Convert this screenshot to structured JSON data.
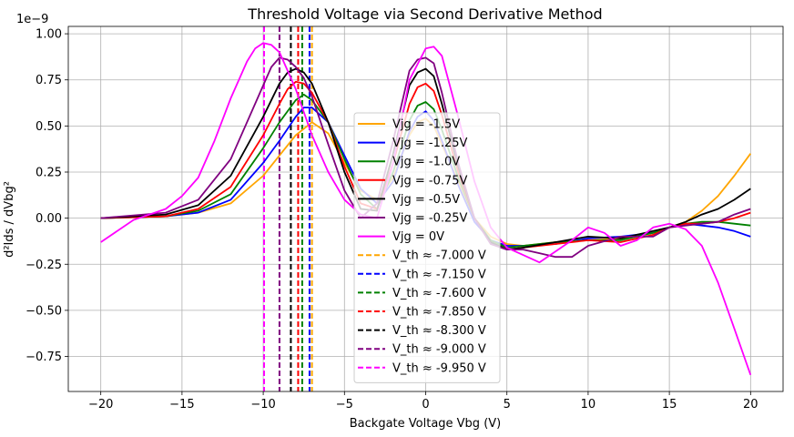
{
  "chart_data": {
    "type": "line",
    "title": "Threshold Voltage via Second Derivative Method",
    "xlabel": "Backgate Voltage Vbg (V)",
    "ylabel": "d²Ids / dVbg²",
    "y_offset_label": "1e−9",
    "xlim": [
      -22,
      22
    ],
    "ylim": [
      -0.94,
      1.04
    ],
    "y_scale_note": "values in units of 1e-9",
    "grid": true,
    "legend_position": "center",
    "x_ticks": [
      -20,
      -15,
      -10,
      -5,
      0,
      5,
      10,
      15,
      20
    ],
    "x_tick_labels": [
      "−20",
      "−15",
      "−10",
      "−5",
      "0",
      "5",
      "10",
      "15",
      "20"
    ],
    "y_ticks": [
      -0.75,
      -0.5,
      -0.25,
      0.0,
      0.25,
      0.5,
      0.75,
      1.0
    ],
    "y_tick_labels": [
      "−0.75",
      "−0.50",
      "−0.25",
      "0.00",
      "0.25",
      "0.50",
      "0.75",
      "1.00"
    ],
    "series": [
      {
        "name": "Vjg = -1.5V",
        "color": "#ffa500",
        "vth": -7.0,
        "x": [
          -20,
          -16,
          -14,
          -12,
          -10,
          -9,
          -8,
          -7,
          -6,
          -5,
          -4,
          -3,
          -2,
          -1,
          -0.5,
          0,
          0.5,
          1,
          2,
          3,
          4,
          5,
          6,
          8,
          10,
          12,
          14,
          15,
          16,
          17,
          18,
          19,
          20
        ],
        "y": [
          0.0,
          0.01,
          0.03,
          0.08,
          0.23,
          0.34,
          0.45,
          0.52,
          0.46,
          0.3,
          0.15,
          0.1,
          0.22,
          0.45,
          0.52,
          0.54,
          0.5,
          0.4,
          0.2,
          0.0,
          -0.1,
          -0.14,
          -0.15,
          -0.13,
          -0.12,
          -0.11,
          -0.08,
          -0.05,
          -0.02,
          0.04,
          0.12,
          0.23,
          0.35
        ]
      },
      {
        "name": "Vjg = -1.25V",
        "color": "#0000ff",
        "vth": -7.15,
        "x": [
          -20,
          -16,
          -14,
          -12,
          -10,
          -9,
          -8,
          -7.5,
          -7,
          -6,
          -5,
          -4,
          -3,
          -2,
          -1,
          -0.5,
          0,
          0.5,
          1,
          2,
          3,
          4,
          5,
          6,
          8,
          10,
          12,
          14,
          15,
          16,
          17,
          18,
          19,
          20
        ],
        "y": [
          0.0,
          0.01,
          0.03,
          0.1,
          0.3,
          0.42,
          0.55,
          0.6,
          0.6,
          0.52,
          0.34,
          0.16,
          0.08,
          0.2,
          0.47,
          0.55,
          0.58,
          0.53,
          0.42,
          0.18,
          -0.02,
          -0.12,
          -0.15,
          -0.15,
          -0.14,
          -0.11,
          -0.1,
          -0.08,
          -0.05,
          -0.03,
          -0.04,
          -0.05,
          -0.07,
          -0.1
        ]
      },
      {
        "name": "Vjg = -1.0V",
        "color": "#008000",
        "vth": -7.6,
        "x": [
          -20,
          -16,
          -14,
          -12,
          -10,
          -9,
          -8,
          -7.5,
          -7,
          -6,
          -5,
          -4,
          -3,
          -2,
          -1,
          -0.5,
          0,
          0.5,
          1,
          2,
          3,
          4,
          5,
          6,
          8,
          10,
          12,
          14,
          15,
          16,
          17,
          18,
          19,
          20
        ],
        "y": [
          0.0,
          0.01,
          0.04,
          0.13,
          0.38,
          0.52,
          0.64,
          0.67,
          0.64,
          0.52,
          0.32,
          0.13,
          0.05,
          0.25,
          0.53,
          0.61,
          0.63,
          0.59,
          0.48,
          0.22,
          0.0,
          -0.12,
          -0.16,
          -0.15,
          -0.13,
          -0.12,
          -0.12,
          -0.08,
          -0.05,
          -0.03,
          -0.02,
          -0.02,
          -0.03,
          -0.04
        ]
      },
      {
        "name": "Vjg = -0.75V",
        "color": "#ff0000",
        "vth": -7.85,
        "x": [
          -20,
          -16,
          -14,
          -12,
          -10,
          -9,
          -8.5,
          -8,
          -7.5,
          -7,
          -6,
          -5,
          -4,
          -3,
          -2,
          -1,
          -0.5,
          0,
          0.5,
          1,
          2,
          3,
          4,
          5,
          6,
          8,
          10,
          12,
          14,
          15,
          16,
          17,
          18,
          19,
          20
        ],
        "y": [
          0.0,
          0.01,
          0.05,
          0.17,
          0.45,
          0.62,
          0.7,
          0.74,
          0.73,
          0.68,
          0.52,
          0.28,
          0.08,
          0.05,
          0.3,
          0.62,
          0.71,
          0.73,
          0.69,
          0.56,
          0.25,
          0.0,
          -0.13,
          -0.17,
          -0.16,
          -0.14,
          -0.12,
          -0.13,
          -0.09,
          -0.05,
          -0.03,
          -0.03,
          -0.02,
          0.0,
          0.03
        ]
      },
      {
        "name": "Vjg = -0.5V",
        "color": "#000000",
        "vth": -8.3,
        "x": [
          -20,
          -16,
          -14,
          -12,
          -10,
          -9,
          -8.5,
          -8,
          -7.5,
          -7,
          -6,
          -5,
          -4,
          -3,
          -2,
          -1,
          -0.5,
          0,
          0.5,
          1,
          2,
          3,
          4,
          5,
          6,
          8,
          10,
          12,
          14,
          15,
          16,
          17,
          18,
          19,
          20
        ],
        "y": [
          0.0,
          0.02,
          0.07,
          0.23,
          0.55,
          0.73,
          0.79,
          0.81,
          0.79,
          0.73,
          0.52,
          0.25,
          0.05,
          0.04,
          0.35,
          0.72,
          0.79,
          0.81,
          0.77,
          0.62,
          0.28,
          0.0,
          -0.13,
          -0.17,
          -0.16,
          -0.13,
          -0.1,
          -0.11,
          -0.07,
          -0.05,
          -0.02,
          0.02,
          0.05,
          0.1,
          0.16
        ]
      },
      {
        "name": "Vjg = -0.25V",
        "color": "#800080",
        "vth": -9.0,
        "x": [
          -20,
          -16,
          -14,
          -12,
          -10,
          -9.5,
          -9,
          -8.5,
          -8,
          -7.5,
          -7,
          -6,
          -5,
          -4,
          -3,
          -2,
          -1,
          -0.5,
          0,
          0.5,
          1,
          2,
          3,
          4,
          5,
          6,
          7,
          8,
          9,
          10,
          12,
          14,
          15,
          16,
          17,
          18,
          19,
          20
        ],
        "y": [
          0.0,
          0.03,
          0.1,
          0.32,
          0.72,
          0.82,
          0.87,
          0.86,
          0.82,
          0.76,
          0.66,
          0.4,
          0.15,
          0.0,
          0.08,
          0.42,
          0.8,
          0.86,
          0.87,
          0.84,
          0.68,
          0.3,
          0.0,
          -0.14,
          -0.17,
          -0.17,
          -0.19,
          -0.21,
          -0.21,
          -0.15,
          -0.1,
          -0.1,
          -0.05,
          -0.04,
          -0.03,
          -0.02,
          0.02,
          0.05
        ]
      },
      {
        "name": "Vjg = 0V",
        "color": "#ff00ff",
        "vth": -9.95,
        "x": [
          -20,
          -18,
          -17,
          -16,
          -15,
          -14,
          -13,
          -12,
          -11,
          -10.5,
          -10,
          -9.5,
          -9,
          -8,
          -7,
          -6,
          -5,
          -4,
          -3,
          -2,
          -1,
          0,
          0.5,
          1,
          2,
          3,
          4,
          5,
          6,
          7,
          8,
          9,
          10,
          11,
          12,
          13,
          14,
          15,
          16,
          17,
          18,
          19,
          20
        ],
        "y": [
          -0.13,
          -0.01,
          0.02,
          0.05,
          0.12,
          0.22,
          0.42,
          0.65,
          0.85,
          0.92,
          0.95,
          0.94,
          0.9,
          0.7,
          0.45,
          0.25,
          0.1,
          0.02,
          0.0,
          0.3,
          0.75,
          0.92,
          0.93,
          0.88,
          0.55,
          0.2,
          -0.05,
          -0.16,
          -0.2,
          -0.24,
          -0.18,
          -0.12,
          -0.05,
          -0.08,
          -0.15,
          -0.12,
          -0.05,
          -0.03,
          -0.06,
          -0.15,
          -0.35,
          -0.6,
          -0.85
        ]
      }
    ],
    "vth_lines": [
      {
        "label": "V_th ≈ -7.000 V",
        "x": -7.0,
        "color": "#ffa500"
      },
      {
        "label": "V_th ≈ -7.150 V",
        "x": -7.15,
        "color": "#0000ff"
      },
      {
        "label": "V_th ≈ -7.600 V",
        "x": -7.6,
        "color": "#008000"
      },
      {
        "label": "V_th ≈ -7.850 V",
        "x": -7.85,
        "color": "#ff0000"
      },
      {
        "label": "V_th ≈ -8.300 V",
        "x": -8.3,
        "color": "#000000"
      },
      {
        "label": "V_th ≈ -9.000 V",
        "x": -9.0,
        "color": "#800080"
      },
      {
        "label": "V_th ≈ -9.950 V",
        "x": -9.95,
        "color": "#ff00ff"
      }
    ]
  }
}
